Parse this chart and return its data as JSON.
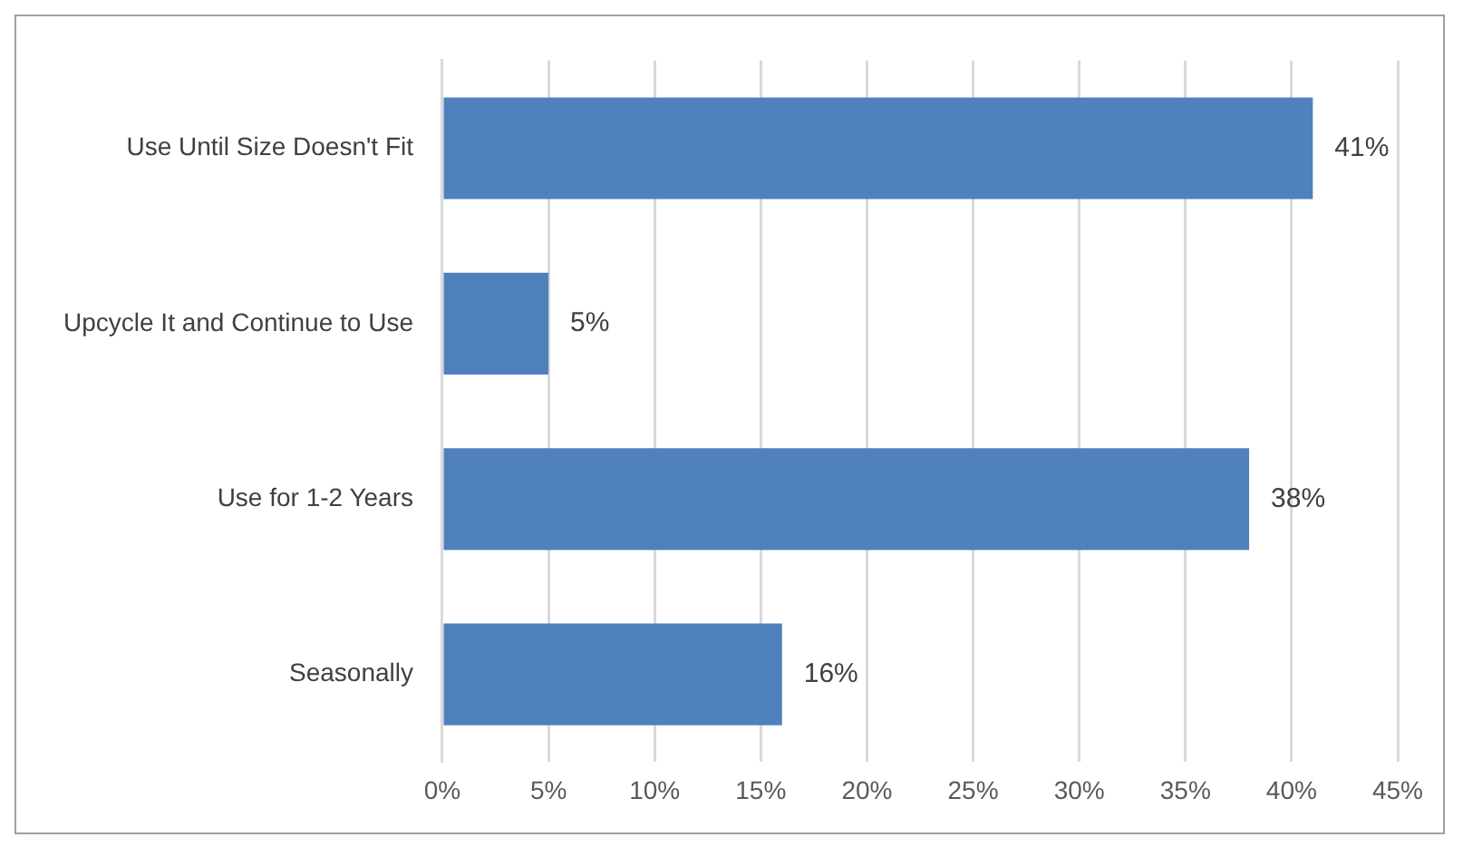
{
  "chart_data": {
    "type": "bar",
    "orientation": "horizontal",
    "categories": [
      "Use Until Size Doesn't Fit",
      "Upcycle It and Continue to Use",
      "Use for 1-2 Years",
      "Seasonally"
    ],
    "values": [
      41,
      5,
      38,
      16
    ],
    "color": "#4f81bd",
    "value_labels": [
      "41%",
      "5%",
      "38%",
      "16%"
    ],
    "xlim": [
      0,
      45
    ],
    "xticks": [
      {
        "value": 0,
        "label": "0%"
      },
      {
        "value": 5,
        "label": "5%"
      },
      {
        "value": 10,
        "label": "10%"
      },
      {
        "value": 15,
        "label": "15%"
      },
      {
        "value": 20,
        "label": "20%"
      },
      {
        "value": 25,
        "label": "25%"
      },
      {
        "value": 30,
        "label": "30%"
      },
      {
        "value": 35,
        "label": "35%"
      },
      {
        "value": 40,
        "label": "40%"
      },
      {
        "value": 45,
        "label": "45%"
      }
    ],
    "grid": "x",
    "legend": false
  }
}
